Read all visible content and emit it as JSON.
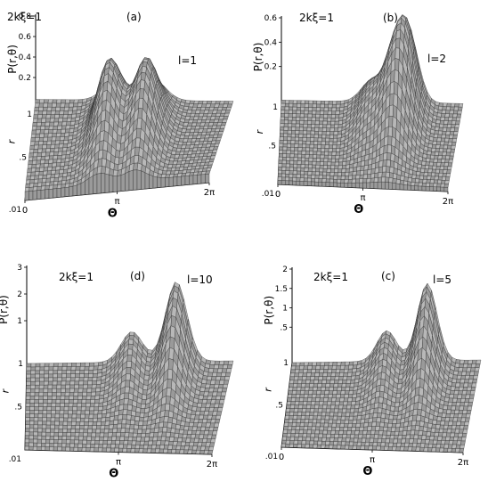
{
  "chart_data": [
    {
      "panel": "(a)",
      "type": "surface",
      "param": "2kξ=1",
      "l_label": "l=1",
      "zlabel": "P(r,θ)",
      "ylabel": "r",
      "xlabel": "Θ",
      "z_ticks": [
        "0.8",
        "0.6",
        "0.4",
        "0.2"
      ],
      "r_ticks": [
        "1",
        ".5",
        ".01"
      ],
      "x_ticks": [
        "0",
        "π",
        "2π"
      ],
      "zmax": 0.8,
      "peaks": [
        {
          "theta": 2.55,
          "r": 0.55,
          "height": 0.62
        },
        {
          "theta": 3.75,
          "r": 0.55,
          "height": 0.62
        }
      ],
      "plateau": 0.12
    },
    {
      "panel": "(b)",
      "type": "surface",
      "param": "2kξ=1",
      "l_label": "l=2",
      "zlabel": "P(r,θ)",
      "ylabel": "r",
      "xlabel": "Θ",
      "z_ticks": [
        "0.6",
        "0.4",
        "0.2"
      ],
      "r_ticks": [
        "1",
        ".5",
        ".01"
      ],
      "x_ticks": [
        "0",
        "π",
        "2π"
      ],
      "zmax": 0.65,
      "peaks": [
        {
          "theta": 3.1,
          "r": 0.75,
          "height": 0.22
        },
        {
          "theta": 3.9,
          "r": 0.7,
          "height": 0.42
        },
        {
          "theta": 4.4,
          "r": 0.85,
          "height": 0.55
        }
      ],
      "plateau": 0.05
    },
    {
      "panel": "(d)",
      "type": "surface",
      "param": "2kξ=1",
      "l_label": "l=10",
      "zlabel": "P(r,θ)",
      "ylabel": "r",
      "xlabel": "Θ",
      "z_ticks": [
        "3",
        "2",
        "1"
      ],
      "r_ticks": [
        "1",
        ".5",
        ".01"
      ],
      "x_ticks": [
        "π",
        "2π"
      ],
      "zmax": 3.1,
      "peaks": [
        {
          "theta": 3.2,
          "r": 0.95,
          "height": 1.0
        },
        {
          "theta": 4.55,
          "r": 0.97,
          "height": 2.6
        }
      ],
      "plateau": 0.0
    },
    {
      "panel": "(c)",
      "type": "surface",
      "param": "2kξ=1",
      "l_label": "l=5",
      "zlabel": "P(r,θ)",
      "ylabel": "r",
      "xlabel": "Θ",
      "z_ticks": [
        "2",
        "1.5",
        "1",
        ".5"
      ],
      "r_ticks": [
        "1",
        ".5",
        ".01"
      ],
      "x_ticks": [
        "0",
        "π",
        "2π"
      ],
      "zmax": 2.1,
      "peaks": [
        {
          "theta": 3.15,
          "r": 0.95,
          "height": 0.7
        },
        {
          "theta": 4.5,
          "r": 0.97,
          "height": 1.75
        }
      ],
      "plateau": 0.0
    }
  ]
}
